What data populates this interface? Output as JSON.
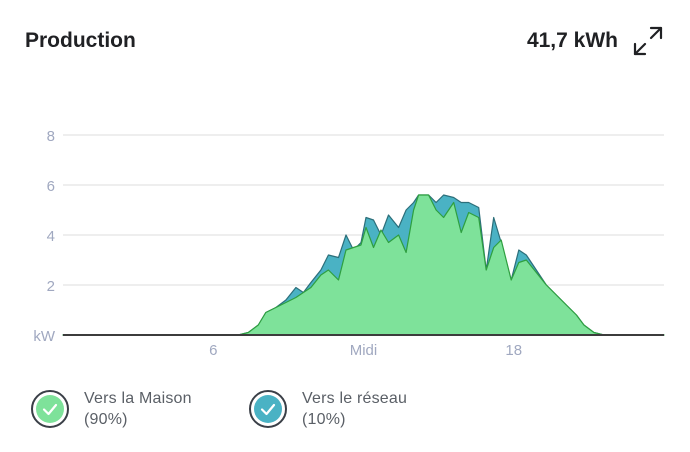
{
  "header": {
    "title": "Production",
    "total": "41,7 kWh"
  },
  "icons": {
    "expand": "expand-arrows-icon",
    "check": "check-icon"
  },
  "colors": {
    "house": "#7ee29a",
    "house_line": "#2e9f3f",
    "grid": "#4ab2c4",
    "grid_line": "#2c6f7a",
    "axis_text": "#a0a8c0",
    "gridline": "#dcdcdc",
    "baseline": "#3c3c3c"
  },
  "legend": [
    {
      "label": "Vers la Maison",
      "percent": "(90%)",
      "color": "#7ee29a"
    },
    {
      "label": "Vers le réseau",
      "percent": "(10%)",
      "color": "#4ab2c4"
    }
  ],
  "chart_data": {
    "type": "area",
    "stacked": false,
    "x_range": [
      0,
      24
    ],
    "ylim": [
      0,
      8
    ],
    "yticks": [
      {
        "v": 0,
        "label": "kW"
      },
      {
        "v": 2,
        "label": "2"
      },
      {
        "v": 4,
        "label": "4"
      },
      {
        "v": 6,
        "label": "6"
      },
      {
        "v": 8,
        "label": "8"
      }
    ],
    "xticks": [
      {
        "v": 6,
        "label": "6"
      },
      {
        "v": 12,
        "label": "Midi"
      },
      {
        "v": 18,
        "label": "18"
      }
    ],
    "grid": true,
    "legend_position": "bottom",
    "series": [
      {
        "name": "Vers le réseau",
        "points": [
          [
            0,
            0
          ],
          [
            7,
            0
          ],
          [
            7.4,
            0.1
          ],
          [
            7.8,
            0.4
          ],
          [
            8.1,
            0.9
          ],
          [
            8.5,
            1.1
          ],
          [
            8.9,
            1.4
          ],
          [
            9.3,
            1.9
          ],
          [
            9.6,
            1.7
          ],
          [
            9.9,
            2.1
          ],
          [
            10.3,
            2.6
          ],
          [
            10.6,
            3.2
          ],
          [
            11.0,
            3.1
          ],
          [
            11.3,
            4.0
          ],
          [
            11.6,
            3.4
          ],
          [
            11.9,
            3.7
          ],
          [
            12.1,
            4.7
          ],
          [
            12.4,
            4.6
          ],
          [
            12.7,
            4.0
          ],
          [
            13.0,
            4.8
          ],
          [
            13.4,
            4.3
          ],
          [
            13.7,
            5.0
          ],
          [
            14.0,
            5.3
          ],
          [
            14.2,
            5.6
          ],
          [
            14.6,
            5.6
          ],
          [
            14.9,
            5.3
          ],
          [
            15.2,
            5.6
          ],
          [
            15.6,
            5.5
          ],
          [
            15.9,
            5.3
          ],
          [
            16.2,
            5.3
          ],
          [
            16.6,
            5.1
          ],
          [
            16.9,
            2.6
          ],
          [
            17.2,
            4.7
          ],
          [
            17.5,
            3.7
          ],
          [
            17.9,
            2.2
          ],
          [
            18.2,
            3.4
          ],
          [
            18.5,
            3.2
          ],
          [
            18.9,
            2.6
          ],
          [
            19.3,
            2.0
          ],
          [
            19.7,
            1.6
          ],
          [
            20.1,
            1.2
          ],
          [
            20.5,
            0.8
          ],
          [
            20.8,
            0.4
          ],
          [
            21.2,
            0.1
          ],
          [
            21.6,
            0
          ],
          [
            24,
            0
          ]
        ]
      },
      {
        "name": "Vers la Maison",
        "points": [
          [
            0,
            0
          ],
          [
            7,
            0
          ],
          [
            7.4,
            0.1
          ],
          [
            7.8,
            0.4
          ],
          [
            8.1,
            0.9
          ],
          [
            8.5,
            1.1
          ],
          [
            8.9,
            1.3
          ],
          [
            9.3,
            1.5
          ],
          [
            9.6,
            1.7
          ],
          [
            9.9,
            1.9
          ],
          [
            10.3,
            2.4
          ],
          [
            10.6,
            2.6
          ],
          [
            11.0,
            2.2
          ],
          [
            11.3,
            3.4
          ],
          [
            11.6,
            3.5
          ],
          [
            11.9,
            3.6
          ],
          [
            12.1,
            4.3
          ],
          [
            12.4,
            3.5
          ],
          [
            12.7,
            4.2
          ],
          [
            13.0,
            3.7
          ],
          [
            13.4,
            4.0
          ],
          [
            13.7,
            3.3
          ],
          [
            14.0,
            5.0
          ],
          [
            14.2,
            5.6
          ],
          [
            14.6,
            5.6
          ],
          [
            14.9,
            5.0
          ],
          [
            15.2,
            4.7
          ],
          [
            15.6,
            5.3
          ],
          [
            15.9,
            4.1
          ],
          [
            16.2,
            4.9
          ],
          [
            16.6,
            4.7
          ],
          [
            16.9,
            2.6
          ],
          [
            17.2,
            3.5
          ],
          [
            17.5,
            3.8
          ],
          [
            17.9,
            2.2
          ],
          [
            18.2,
            2.9
          ],
          [
            18.5,
            3.0
          ],
          [
            18.9,
            2.5
          ],
          [
            19.3,
            2.0
          ],
          [
            19.7,
            1.6
          ],
          [
            20.1,
            1.2
          ],
          [
            20.5,
            0.8
          ],
          [
            20.8,
            0.4
          ],
          [
            21.2,
            0.1
          ],
          [
            21.6,
            0
          ],
          [
            24,
            0
          ]
        ]
      }
    ]
  }
}
